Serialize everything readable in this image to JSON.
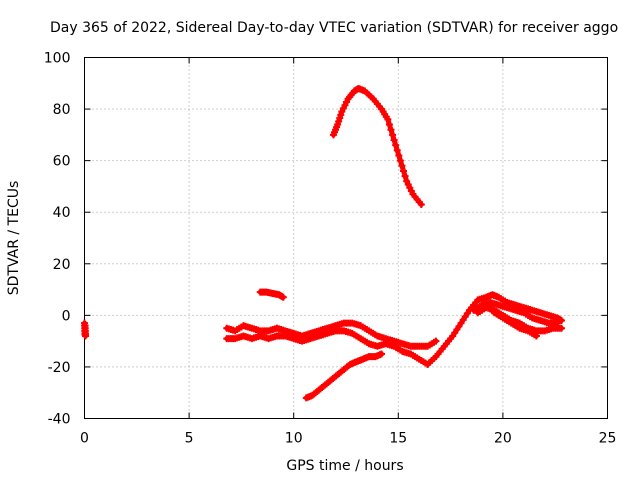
{
  "chart_data": {
    "type": "scatter",
    "title": "Day 365 of 2022, Sidereal Day-to-day VTEC variation (SDTVAR) for receiver aggo",
    "xlabel": "GPS time / hours",
    "ylabel": "SDTVAR / TECUs",
    "xlim": [
      0,
      25
    ],
    "ylim": [
      -40,
      100
    ],
    "xticks": [
      0,
      5,
      10,
      15,
      20,
      25
    ],
    "yticks": [
      -40,
      -20,
      0,
      20,
      40,
      60,
      80,
      100
    ],
    "xtick_labels": [
      "0",
      "5",
      "10",
      "15",
      "20",
      "25"
    ],
    "ytick_labels": [
      "-40",
      "-20",
      "0",
      "20",
      "40",
      "60",
      "80",
      "100"
    ],
    "grid": true,
    "marker": "+",
    "series_color": "#ff0000",
    "series": [
      {
        "name": "t0_cluster",
        "x": [
          0.0,
          0.02,
          0.05,
          0.03
        ],
        "y": [
          -3,
          -7,
          -8,
          -4
        ]
      },
      {
        "name": "high_arc",
        "x": [
          11.9,
          12.1,
          12.3,
          12.6,
          12.9,
          13.1,
          13.4,
          13.8,
          14.2,
          14.5,
          14.8,
          15.1,
          15.4,
          15.7,
          16.1
        ],
        "y": [
          70,
          74,
          79,
          84,
          87,
          88,
          87,
          84,
          80,
          76,
          68,
          60,
          52,
          47,
          43
        ]
      },
      {
        "name": "short_arc",
        "x": [
          8.4,
          8.7,
          9.0,
          9.3,
          9.5
        ],
        "y": [
          9,
          9,
          8.5,
          8,
          7
        ]
      },
      {
        "name": "low_arc",
        "x": [
          10.6,
          10.9,
          11.2,
          11.5,
          11.8,
          12.1,
          12.4,
          12.7,
          13.0,
          13.3,
          13.6,
          13.9,
          14.2
        ],
        "y": [
          -32,
          -31,
          -29,
          -27,
          -25,
          -23,
          -21,
          -19,
          -18,
          -17,
          -16,
          -16,
          -15
        ]
      },
      {
        "name": "band_upper",
        "x": [
          6.8,
          7.2,
          7.6,
          8.0,
          8.4,
          8.8,
          9.2,
          9.6,
          10.0,
          10.4,
          10.8,
          11.2,
          11.6,
          12.0,
          12.4,
          12.8,
          13.2,
          13.6,
          14.0,
          14.4,
          14.8,
          15.2,
          15.6,
          16.0,
          16.4,
          16.8
        ],
        "y": [
          -5,
          -6,
          -4,
          -5,
          -6,
          -6,
          -5,
          -6,
          -7,
          -8,
          -7,
          -6,
          -5,
          -4,
          -3,
          -3,
          -4,
          -6,
          -8,
          -9,
          -10,
          -11,
          -12,
          -12,
          -12,
          -10
        ]
      },
      {
        "name": "band_lower",
        "x": [
          6.8,
          7.2,
          7.6,
          8.0,
          8.4,
          8.8,
          9.2,
          9.6,
          10.0,
          10.4,
          10.8,
          11.2,
          11.6,
          12.0,
          12.4,
          12.8,
          13.2,
          13.6,
          14.0,
          14.4,
          14.8,
          15.2,
          15.6,
          16.0,
          16.4
        ],
        "y": [
          -9,
          -9,
          -8,
          -9,
          -8,
          -9,
          -8,
          -8,
          -9,
          -10,
          -9,
          -8,
          -7,
          -6,
          -6,
          -7,
          -9,
          -11,
          -12,
          -11,
          -12,
          -14,
          -15,
          -17,
          -19
        ]
      },
      {
        "name": "rise_arc",
        "x": [
          16.4,
          16.8,
          17.2,
          17.6,
          18.0,
          18.4,
          18.8,
          19.2,
          19.5,
          19.8,
          20.2,
          20.6,
          21.0,
          21.4,
          21.8,
          22.2,
          22.6,
          22.8
        ],
        "y": [
          -19,
          -16,
          -12,
          -8,
          -3,
          2,
          6,
          7,
          8,
          7,
          5,
          4,
          3,
          2,
          1,
          0,
          -1,
          -2
        ]
      },
      {
        "name": "decline_a",
        "x": [
          18.8,
          19.2,
          19.6,
          20.0,
          20.4,
          20.8,
          21.2,
          21.6,
          22.0,
          22.4,
          22.8
        ],
        "y": [
          1,
          3,
          2,
          0,
          -2,
          -3,
          -5,
          -6,
          -6,
          -5,
          -5
        ]
      },
      {
        "name": "decline_b",
        "x": [
          19.2,
          19.6,
          20.0,
          20.4,
          20.8,
          21.2,
          21.6
        ],
        "y": [
          4,
          1,
          -1,
          -3,
          -5,
          -6,
          -8
        ]
      },
      {
        "name": "decline_c",
        "x": [
          18.6,
          19.0,
          19.4,
          19.8,
          20.2,
          20.6,
          21.0,
          21.4,
          21.8,
          22.2,
          22.6
        ],
        "y": [
          2,
          4,
          5,
          4,
          3,
          2,
          1,
          -1,
          -2,
          -3,
          -3
        ]
      }
    ]
  }
}
